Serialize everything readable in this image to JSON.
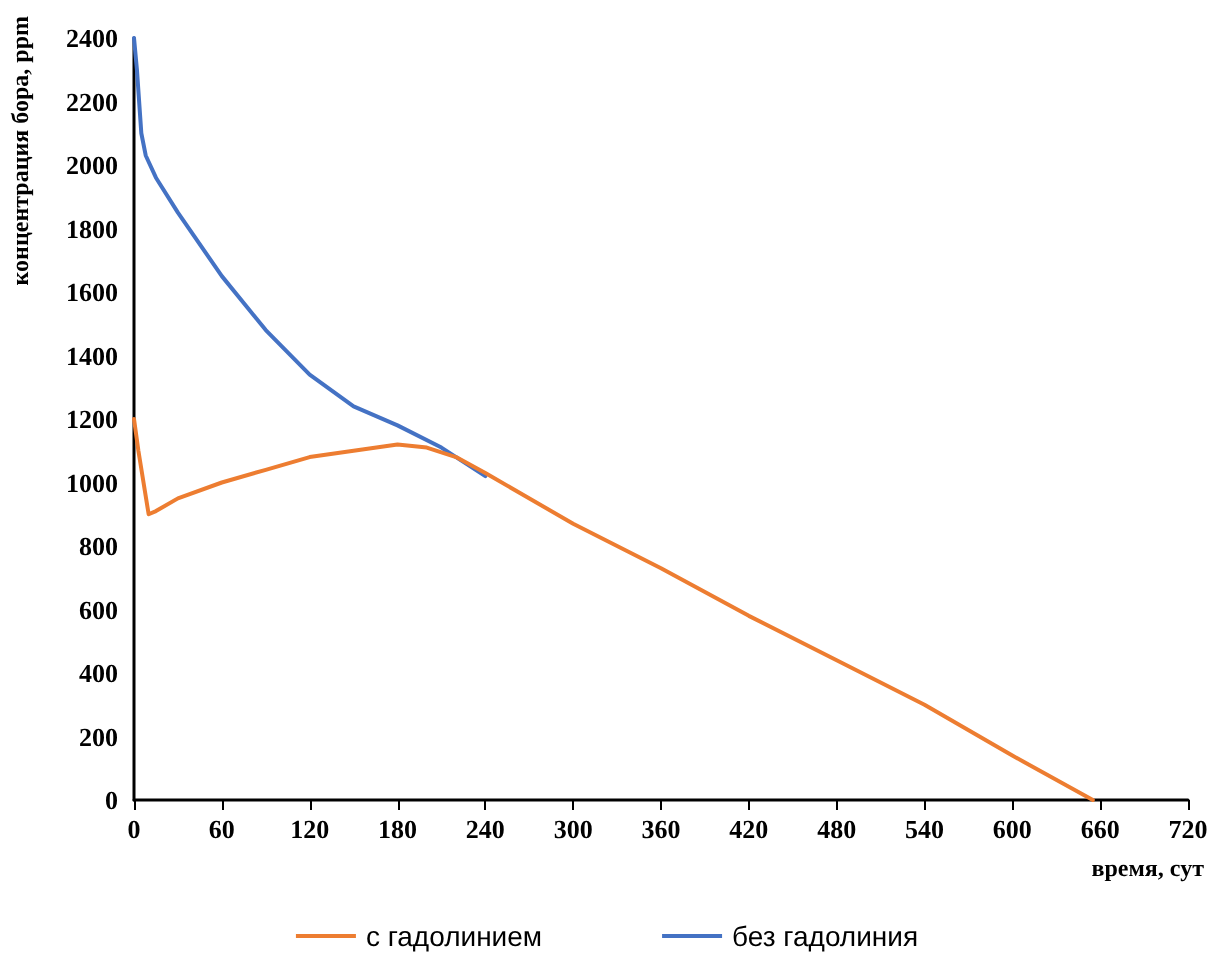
{
  "chart_data": {
    "type": "line",
    "xlabel": "время, сут",
    "ylabel": "концентрация бора, ppm",
    "xlim": [
      0,
      720
    ],
    "xticks": [
      0,
      60,
      120,
      180,
      240,
      300,
      360,
      420,
      480,
      540,
      600,
      660,
      720
    ],
    "ylim": [
      0,
      2400
    ],
    "yticks": [
      0,
      200,
      400,
      600,
      800,
      1000,
      1200,
      1400,
      1600,
      1800,
      2000,
      2200,
      2400
    ],
    "grid": false,
    "legend": "bottom",
    "marker": "none",
    "line_style": "solid",
    "series": [
      {
        "name": "с гадолинием",
        "color": "#ed7d31",
        "x": [
          0,
          3,
          10,
          15,
          30,
          60,
          90,
          120,
          150,
          180,
          200,
          220,
          240,
          300,
          360,
          420,
          480,
          540,
          600,
          655
        ],
        "values": [
          1200,
          1100,
          900,
          910,
          950,
          1000,
          1040,
          1080,
          1100,
          1120,
          1110,
          1080,
          1030,
          870,
          730,
          580,
          440,
          300,
          140,
          0
        ]
      },
      {
        "name": "без гадолиния",
        "color": "#4472c4",
        "x": [
          0,
          2,
          5,
          8,
          15,
          30,
          60,
          90,
          120,
          150,
          180,
          210,
          240
        ],
        "values": [
          2400,
          2300,
          2100,
          2030,
          1960,
          1850,
          1650,
          1480,
          1340,
          1240,
          1180,
          1110,
          1020
        ]
      }
    ]
  }
}
